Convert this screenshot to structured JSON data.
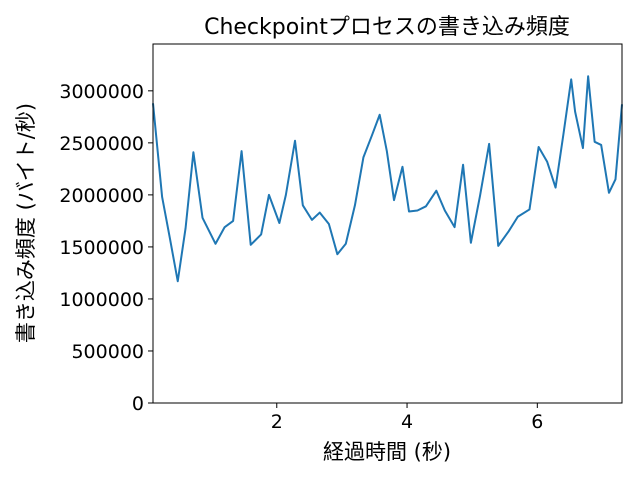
{
  "chart_data": {
    "type": "line",
    "title": "Checkpointプロセスの書き込み頻度",
    "xlabel": "経過時間 (秒)",
    "ylabel": "書き込み頻度 (バイト/秒)",
    "xlim": [
      0.1,
      7.3
    ],
    "ylim": [
      0,
      3450000
    ],
    "xticks": [
      2,
      4,
      6
    ],
    "xtick_labels": [
      "2",
      "4",
      "6"
    ],
    "yticks": [
      0,
      500000,
      1000000,
      1500000,
      2000000,
      2500000,
      3000000
    ],
    "ytick_labels": [
      "0",
      "500000",
      "1000000",
      "1500000",
      "2000000",
      "2500000",
      "3000000"
    ],
    "grid": false,
    "color": "#1f77b4",
    "series": [
      {
        "x": [
          0.1,
          0.24,
          0.36,
          0.48,
          0.6,
          0.72,
          0.86,
          1.06,
          1.2,
          1.33,
          1.46,
          1.6,
          1.76,
          1.88,
          2.04,
          2.14,
          2.28,
          2.4,
          2.54,
          2.66,
          2.8,
          2.93,
          3.06,
          3.2,
          3.33,
          3.46,
          3.58,
          3.69,
          3.8,
          3.93,
          4.03,
          4.16,
          4.29,
          4.45,
          4.58,
          4.73,
          4.86,
          4.98,
          5.12,
          5.26,
          5.4,
          5.56,
          5.7,
          5.88,
          6.02,
          6.15,
          6.28,
          6.4,
          6.52,
          6.58,
          6.7,
          6.78,
          6.88,
          6.98,
          7.1,
          7.2,
          7.3
        ],
        "y": [
          2880000,
          1980000,
          1580000,
          1170000,
          1680000,
          2410000,
          1780000,
          1530000,
          1690000,
          1750000,
          2420000,
          1520000,
          1620000,
          2000000,
          1730000,
          2000000,
          2520000,
          1900000,
          1760000,
          1830000,
          1720000,
          1430000,
          1530000,
          1900000,
          2360000,
          2570000,
          2770000,
          2420000,
          1950000,
          2270000,
          1840000,
          1850000,
          1890000,
          2040000,
          1850000,
          1690000,
          2290000,
          1540000,
          1990000,
          2490000,
          1510000,
          1650000,
          1790000,
          1860000,
          2460000,
          2320000,
          2070000,
          2580000,
          3110000,
          2800000,
          2450000,
          3140000,
          2510000,
          2480000,
          2020000,
          2150000,
          2870000
        ]
      }
    ]
  }
}
